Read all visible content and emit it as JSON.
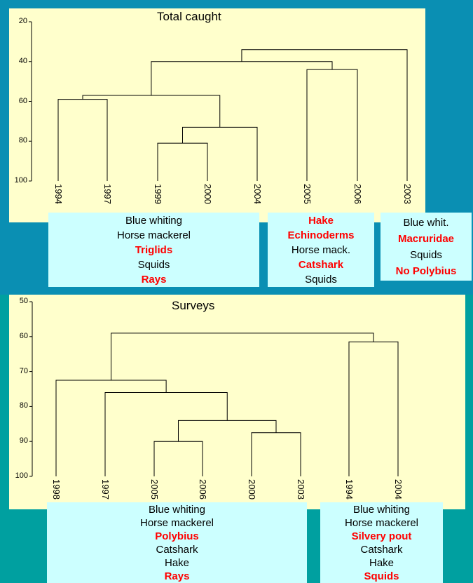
{
  "colors": {
    "bg_top": "#0a8fb3",
    "bg_bottom": "#00a0a0",
    "panel": "#ffffcc",
    "box": "#ccffff",
    "highlight": "#ff0000"
  },
  "chart_data": [
    {
      "type": "dendrogram",
      "title": "Total caught",
      "yticks": [
        "20",
        "40",
        "60",
        "80",
        "100"
      ],
      "ylim": [
        20,
        100
      ],
      "leaves": [
        "1994",
        "1997",
        "1999",
        "2000",
        "2004",
        "2005",
        "2006",
        "2003"
      ],
      "merges": [
        {
          "left": "1999",
          "right": "2000",
          "height": 81
        },
        {
          "left": "1994",
          "right": "1997",
          "height": 59
        },
        {
          "left": "(1999,2000)",
          "right": "2004",
          "height": 73
        },
        {
          "left": "(1994,1997)",
          "right": "(1999,2000,2004)",
          "height": 57
        },
        {
          "left": "2005",
          "right": "2006",
          "height": 44
        },
        {
          "left": "(1994…2004)",
          "right": "(2005,2006)",
          "height": 40
        },
        {
          "left": "(1994…2006)",
          "right": "2003",
          "height": 34
        }
      ]
    },
    {
      "type": "dendrogram",
      "title": "Surveys",
      "yticks": [
        "50",
        "60",
        "70",
        "80",
        "90",
        "100"
      ],
      "ylim": [
        50,
        100
      ],
      "leaves": [
        "1998",
        "1997",
        "2005",
        "2006",
        "2000",
        "2003",
        "1994",
        "2004"
      ],
      "merges": [
        {
          "left": "2005",
          "right": "2006",
          "height": 90
        },
        {
          "left": "2000",
          "right": "2003",
          "height": 87.5
        },
        {
          "left": "(2005,2006)",
          "right": "(2000,2003)",
          "height": 84
        },
        {
          "left": "1997",
          "right": "(2005…2003)",
          "height": 76
        },
        {
          "left": "1998",
          "right": "(1997…2003)",
          "height": 72.5
        },
        {
          "left": "1994",
          "right": "2004",
          "height": 61.5
        },
        {
          "left": "(1998…2003)",
          "right": "(1994,2004)",
          "height": 59
        }
      ]
    }
  ],
  "groups_top": [
    {
      "items": [
        {
          "text": "Blue whiting",
          "hl": false
        },
        {
          "text": "Horse mackerel",
          "hl": false
        },
        {
          "text": "Triglids",
          "hl": true
        },
        {
          "text": "Squids",
          "hl": false
        },
        {
          "text": "Rays",
          "hl": true
        }
      ]
    },
    {
      "items": [
        {
          "text": "Hake",
          "hl": true
        },
        {
          "text": "Echinoderms",
          "hl": true
        },
        {
          "text": "Horse mack.",
          "hl": false
        },
        {
          "text": "Catshark",
          "hl": true
        },
        {
          "text": "Squids",
          "hl": false
        }
      ]
    },
    {
      "items": [
        {
          "text": "Blue whit.",
          "hl": false
        },
        {
          "text": "Macruridae",
          "hl": true
        },
        {
          "text": "Squids",
          "hl": false
        },
        {
          "text": "No Polybius",
          "hl": true
        }
      ]
    }
  ],
  "groups_bottom": [
    {
      "items": [
        {
          "text": "Blue whiting",
          "hl": false
        },
        {
          "text": "Horse mackerel",
          "hl": false
        },
        {
          "text": "Polybius",
          "hl": true
        },
        {
          "text": "Catshark",
          "hl": false
        },
        {
          "text": "Hake",
          "hl": false
        },
        {
          "text": "Rays",
          "hl": true
        }
      ]
    },
    {
      "items": [
        {
          "text": "Blue whiting",
          "hl": false
        },
        {
          "text": "Horse mackerel",
          "hl": false
        },
        {
          "text": "Silvery pout",
          "hl": true
        },
        {
          "text": "Catshark",
          "hl": false
        },
        {
          "text": "Hake",
          "hl": false
        },
        {
          "text": "Squids",
          "hl": true
        }
      ]
    }
  ]
}
